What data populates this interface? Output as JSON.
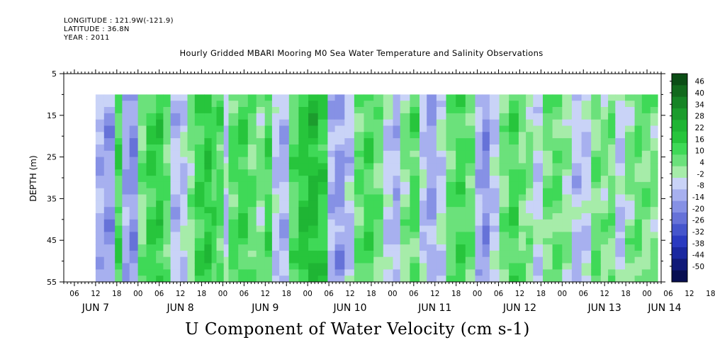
{
  "header": {
    "longitude": "LONGITUDE : 121.9W(-121.9)",
    "latitude": "LATITUDE : 36.8N",
    "year": "YEAR : 2011"
  },
  "chart_data": {
    "type": "heatmap",
    "title": "Hourly Gridded MBARI Mooring M0 Sea Water Temperature and Salinity Observations",
    "xlabel": "U Component of Water Velocity (cm s-1)",
    "ylabel": "DEPTH (m)",
    "ylim": [
      5,
      55
    ],
    "y_inverted": true,
    "y_ticks": [
      5,
      15,
      25,
      35,
      45,
      55
    ],
    "hour_ticks": [
      "06",
      "12",
      "18",
      "00",
      "06",
      "12",
      "18",
      "00",
      "06",
      "12",
      "18",
      "00",
      "06",
      "12",
      "18",
      "00",
      "06",
      "12",
      "18",
      "00",
      "06",
      "12",
      "18",
      "00",
      "06",
      "12",
      "18",
      "00",
      "06",
      "12",
      "18",
      "00"
    ],
    "date_labels": [
      "JUN  7",
      "JUN  8",
      "JUN  9",
      "JUN 10",
      "JUN 11",
      "JUN 12",
      "JUN 13",
      "JUN 14"
    ],
    "x_start": "2011-06-07 03:00",
    "x_end": "2011-06-14 04:00",
    "data_start": "2011-06-07 12:00",
    "data_end": "2011-06-14 03:00",
    "data_depth_range": [
      10,
      55
    ],
    "colorbar": {
      "labels": [
        "46",
        "40",
        "34",
        "28",
        "22",
        "16",
        "10",
        "4",
        "-2",
        "-8",
        "-14",
        "-20",
        "-26",
        "-32",
        "-38",
        "-44",
        "-50"
      ],
      "colors_top_to_bottom": [
        "#0b4d15",
        "#12691d",
        "#178426",
        "#1c9c2d",
        "#1fb534",
        "#27c53c",
        "#3fd957",
        "#6be17b",
        "#a6eca9",
        "#c9d3f7",
        "#a7b0ef",
        "#8691e5",
        "#6672d8",
        "#4555cc",
        "#2a3ac0",
        "#1a28a0",
        "#101a78",
        "#080f52"
      ]
    },
    "regions": [
      {
        "x0": 0,
        "x1": 7,
        "value": -10
      },
      {
        "x0": 7,
        "x1": 16,
        "value": -14
      },
      {
        "x0": 16,
        "x1": 22,
        "value": 12
      },
      {
        "x0": 22,
        "x1": 28,
        "value": -12
      },
      {
        "x0": 28,
        "x1": 35,
        "value": -16
      },
      {
        "x0": 35,
        "x1": 42,
        "value": 6
      },
      {
        "x0": 42,
        "x1": 50,
        "value": 14
      },
      {
        "x0": 50,
        "x1": 56,
        "value": 16
      },
      {
        "x0": 56,
        "x1": 62,
        "value": 8
      },
      {
        "x0": 62,
        "x1": 70,
        "value": -8
      },
      {
        "x0": 70,
        "x1": 76,
        "value": -6
      },
      {
        "x0": 76,
        "x1": 82,
        "value": 4
      },
      {
        "x0": 82,
        "x1": 90,
        "value": 14
      },
      {
        "x0": 90,
        "x1": 96,
        "value": 18
      },
      {
        "x0": 96,
        "x1": 100,
        "value": 12
      },
      {
        "x0": 100,
        "x1": 106,
        "value": 10
      },
      {
        "x0": 106,
        "x1": 110,
        "value": -6
      },
      {
        "x0": 110,
        "x1": 118,
        "value": 10
      },
      {
        "x0": 118,
        "x1": 126,
        "value": 14
      },
      {
        "x0": 126,
        "x1": 133,
        "value": 8
      },
      {
        "x0": 133,
        "x1": 140,
        "value": 4
      },
      {
        "x0": 140,
        "x1": 146,
        "value": 12
      },
      {
        "x0": 146,
        "x1": 152,
        "value": -6
      },
      {
        "x0": 152,
        "x1": 160,
        "value": -10
      },
      {
        "x0": 160,
        "x1": 168,
        "value": 10
      },
      {
        "x0": 168,
        "x1": 176,
        "value": 18
      },
      {
        "x0": 176,
        "x1": 184,
        "value": 22
      },
      {
        "x0": 184,
        "x1": 192,
        "value": 16
      },
      {
        "x0": 192,
        "x1": 198,
        "value": -10
      },
      {
        "x0": 198,
        "x1": 206,
        "value": -14
      },
      {
        "x0": 206,
        "x1": 214,
        "value": -8
      },
      {
        "x0": 214,
        "x1": 222,
        "value": 8
      },
      {
        "x0": 222,
        "x1": 230,
        "value": 12
      },
      {
        "x0": 230,
        "x1": 238,
        "value": 6
      },
      {
        "x0": 238,
        "x1": 246,
        "value": -6
      },
      {
        "x0": 246,
        "x1": 252,
        "value": -10
      },
      {
        "x0": 252,
        "x1": 260,
        "value": 4
      },
      {
        "x0": 260,
        "x1": 268,
        "value": 10
      },
      {
        "x0": 268,
        "x1": 274,
        "value": -6
      },
      {
        "x0": 274,
        "x1": 282,
        "value": -12
      },
      {
        "x0": 282,
        "x1": 290,
        "value": -4
      },
      {
        "x0": 290,
        "x1": 298,
        "value": 8
      },
      {
        "x0": 298,
        "x1": 306,
        "value": 12
      },
      {
        "x0": 306,
        "x1": 314,
        "value": 8
      },
      {
        "x0": 314,
        "x1": 320,
        "value": -10
      },
      {
        "x0": 320,
        "x1": 326,
        "value": -16
      },
      {
        "x0": 326,
        "x1": 334,
        "value": -6
      },
      {
        "x0": 334,
        "x1": 342,
        "value": 6
      },
      {
        "x0": 342,
        "x1": 350,
        "value": 12
      },
      {
        "x0": 350,
        "x1": 356,
        "value": 6
      },
      {
        "x0": 356,
        "x1": 362,
        "value": 4
      },
      {
        "x0": 362,
        "x1": 370,
        "value": -4
      },
      {
        "x0": 370,
        "x1": 378,
        "value": 6
      },
      {
        "x0": 378,
        "x1": 386,
        "value": 8
      },
      {
        "x0": 386,
        "x1": 394,
        "value": 2
      },
      {
        "x0": 394,
        "x1": 402,
        "value": -8
      },
      {
        "x0": 402,
        "x1": 410,
        "value": -6
      },
      {
        "x0": 410,
        "x1": 418,
        "value": 6
      },
      {
        "x0": 418,
        "x1": 424,
        "value": 4
      },
      {
        "x0": 424,
        "x1": 430,
        "value": 6
      },
      {
        "x0": 430,
        "x1": 438,
        "value": -6
      },
      {
        "x0": 438,
        "x1": 446,
        "value": 4
      },
      {
        "x0": 446,
        "x1": 452,
        "value": 8
      },
      {
        "x0": 452,
        "x1": 459,
        "value": 6
      },
      {
        "x0": 459,
        "x1": 465,
        "value": 4
      }
    ]
  }
}
